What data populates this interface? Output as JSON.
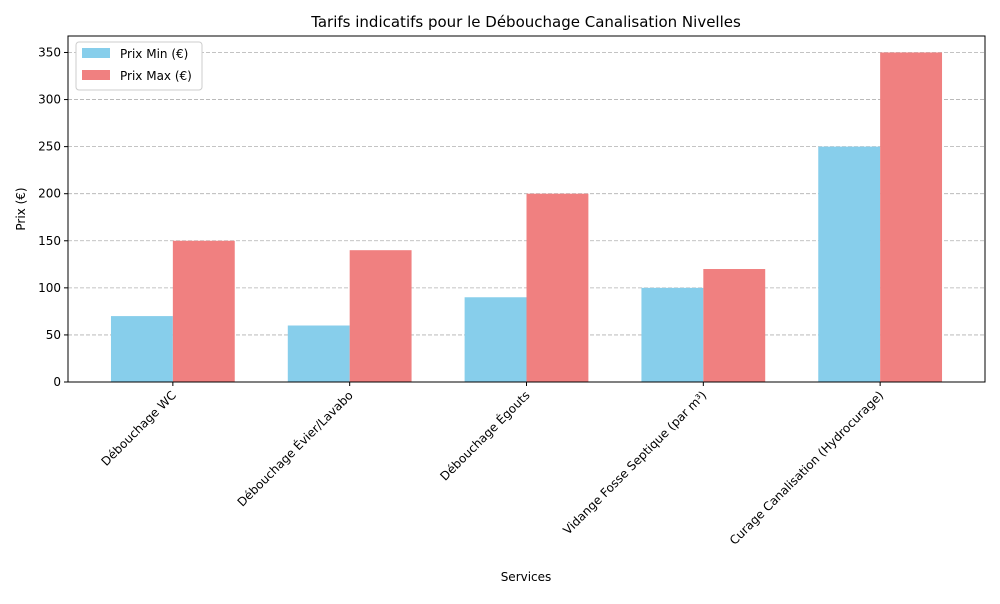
{
  "chart_data": {
    "type": "bar",
    "title": "Tarifs indicatifs pour le Débouchage Canalisation Nivelles",
    "xlabel": "Services",
    "ylabel": "Prix (€)",
    "categories": [
      "Débouchage WC",
      "Débouchage Évier/Lavabo",
      "Débouchage Égouts",
      "Vidange Fosse Septique (par m³)",
      "Curage Canalisation (Hydrocurage)"
    ],
    "series": [
      {
        "name": "Prix Min (€)",
        "values": [
          70,
          60,
          90,
          100,
          250
        ],
        "color": "#87ceeb"
      },
      {
        "name": "Prix Max (€)",
        "values": [
          150,
          140,
          200,
          120,
          350
        ],
        "color": "#f08080"
      }
    ],
    "ylim": [
      0,
      367.5
    ],
    "yticks": [
      0,
      50,
      100,
      150,
      200,
      250,
      300,
      350
    ],
    "grid": "y-dashed",
    "legend": "top-left"
  }
}
